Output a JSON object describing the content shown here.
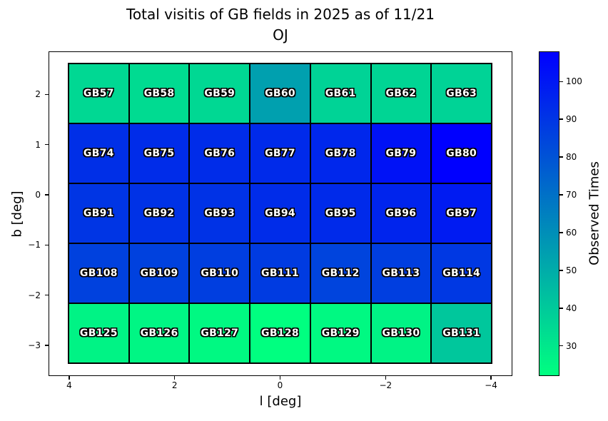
{
  "chart_data": {
    "type": "heatmap",
    "title_line1": "Total visitis of GB fields in 2025 as of 11/21",
    "title_line2": "OJ",
    "xlabel": "l [deg]",
    "ylabel": "b [deg]",
    "x_axis_reversed": true,
    "x_ticks": [
      {
        "label": "4",
        "value": 4
      },
      {
        "label": "2",
        "value": 2
      },
      {
        "label": "0",
        "value": 0
      },
      {
        "label": "−2",
        "value": -2
      },
      {
        "label": "−4",
        "value": -4
      }
    ],
    "y_ticks": [
      {
        "label": "2",
        "value": 2
      },
      {
        "label": "1",
        "value": 1
      },
      {
        "label": "0",
        "value": 0
      },
      {
        "label": "−1",
        "value": -1
      },
      {
        "label": "−2",
        "value": -2
      },
      {
        "label": "−3",
        "value": -3
      }
    ],
    "colorbar": {
      "label": "Observed Times",
      "colormap": "winter_r",
      "color_low": "#00ff80",
      "color_high": "#0000ff",
      "vmin": 22,
      "vmax": 108,
      "ticks": [
        {
          "label": "100",
          "value": 100
        },
        {
          "label": "90",
          "value": 90
        },
        {
          "label": "80",
          "value": 80
        },
        {
          "label": "70",
          "value": 70
        },
        {
          "label": "60",
          "value": 60
        },
        {
          "label": "50",
          "value": 50
        },
        {
          "label": "40",
          "value": 40
        },
        {
          "label": "30",
          "value": 30
        }
      ]
    },
    "cell_label_color": "#ffffff",
    "cell_label_outline": "#000000",
    "grid": {
      "n_rows": 5,
      "n_cols": 7,
      "rows": [
        {
          "cells": [
            {
              "label": "GB57",
              "value": 35
            },
            {
              "label": "GB58",
              "value": 34
            },
            {
              "label": "GB59",
              "value": 35
            },
            {
              "label": "GB60",
              "value": 54
            },
            {
              "label": "GB61",
              "value": 37
            },
            {
              "label": "GB62",
              "value": 36
            },
            {
              "label": "GB63",
              "value": 37
            }
          ]
        },
        {
          "cells": [
            {
              "label": "GB74",
              "value": 92
            },
            {
              "label": "GB75",
              "value": 93
            },
            {
              "label": "GB76",
              "value": 93
            },
            {
              "label": "GB77",
              "value": 94
            },
            {
              "label": "GB78",
              "value": 95
            },
            {
              "label": "GB79",
              "value": 102
            },
            {
              "label": "GB80",
              "value": 108
            }
          ]
        },
        {
          "cells": [
            {
              "label": "GB91",
              "value": 90
            },
            {
              "label": "GB92",
              "value": 91
            },
            {
              "label": "GB93",
              "value": 91
            },
            {
              "label": "GB94",
              "value": 93
            },
            {
              "label": "GB95",
              "value": 94
            },
            {
              "label": "GB96",
              "value": 96
            },
            {
              "label": "GB97",
              "value": 99
            }
          ]
        },
        {
          "cells": [
            {
              "label": "GB108",
              "value": 86
            },
            {
              "label": "GB109",
              "value": 86
            },
            {
              "label": "GB110",
              "value": 87
            },
            {
              "label": "GB111",
              "value": 88
            },
            {
              "label": "GB112",
              "value": 85
            },
            {
              "label": "GB113",
              "value": 87
            },
            {
              "label": "GB114",
              "value": 89
            }
          ]
        },
        {
          "cells": [
            {
              "label": "GB125",
              "value": 26
            },
            {
              "label": "GB126",
              "value": 25
            },
            {
              "label": "GB127",
              "value": 24
            },
            {
              "label": "GB128",
              "value": 22
            },
            {
              "label": "GB129",
              "value": 24
            },
            {
              "label": "GB130",
              "value": 26
            },
            {
              "label": "GB131",
              "value": 41
            }
          ]
        }
      ]
    }
  }
}
